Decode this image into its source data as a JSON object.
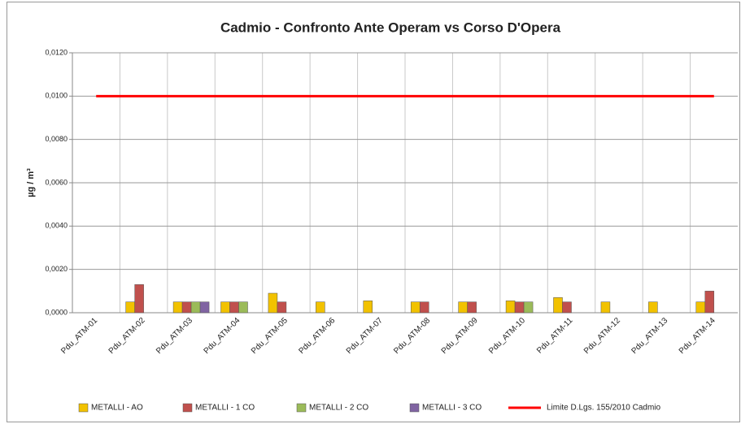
{
  "chart_data": {
    "type": "bar",
    "title": "Cadmio - Confronto Ante Operam vs Corso D'Opera",
    "y_label": "µg / m³",
    "categories": [
      "Pdu_ATM-01",
      "Pdu_ATM-02",
      "Pdu_ATM-03",
      "Pdu_ATM-04",
      "Pdu_ATM-05",
      "Pdu_ATM-06",
      "Pdu_ATM-07",
      "Pdu_ATM-08",
      "Pdu_ATM-09",
      "Pdu_ATM-10",
      "Pdu_ATM-11",
      "Pdu_ATM-12",
      "Pdu_ATM-13",
      "Pdu_ATM-14"
    ],
    "series": [
      {
        "name": "METALLI - AO",
        "color": "#f2c200",
        "values": [
          null,
          0.0005,
          0.0005,
          0.0005,
          0.0009,
          0.0005,
          0.00055,
          0.0005,
          0.0005,
          0.00055,
          0.0007,
          0.0005,
          0.0005,
          0.0005
        ]
      },
      {
        "name": "METALLI - 1 CO",
        "color": "#c0504d",
        "values": [
          null,
          0.0013,
          0.0005,
          0.0005,
          0.0005,
          null,
          null,
          0.0005,
          0.0005,
          0.0005,
          0.0005,
          null,
          null,
          0.001
        ]
      },
      {
        "name": "METALLI - 2 CO",
        "color": "#9bbb59",
        "values": [
          null,
          null,
          0.0005,
          0.0005,
          null,
          null,
          null,
          null,
          null,
          0.0005,
          null,
          null,
          null,
          null
        ]
      },
      {
        "name": "METALLI - 3 CO",
        "color": "#8064a2",
        "values": [
          null,
          null,
          0.0005,
          null,
          null,
          null,
          null,
          null,
          null,
          null,
          null,
          null,
          null,
          null
        ]
      },
      {
        "name": "Limite D.Lgs. 155/2010 Cadmio",
        "color": "#ff0000",
        "type": "line",
        "values": [
          0.01,
          0.01,
          0.01,
          0.01,
          0.01,
          0.01,
          0.01,
          0.01,
          0.01,
          0.01,
          0.01,
          0.01,
          0.01,
          0.01
        ]
      }
    ],
    "ylim": [
      0,
      0.012
    ],
    "yticks": [
      {
        "value": 0,
        "label": "0,0000"
      },
      {
        "value": 0.002,
        "label": "0,0020"
      },
      {
        "value": 0.004,
        "label": "0,0040"
      },
      {
        "value": 0.006,
        "label": "0,0060"
      },
      {
        "value": 0.008,
        "label": "0,0080"
      },
      {
        "value": 0.01,
        "label": "0,0100"
      },
      {
        "value": 0.012,
        "label": "0,0120"
      }
    ],
    "grid": true,
    "legend": "bottom"
  }
}
